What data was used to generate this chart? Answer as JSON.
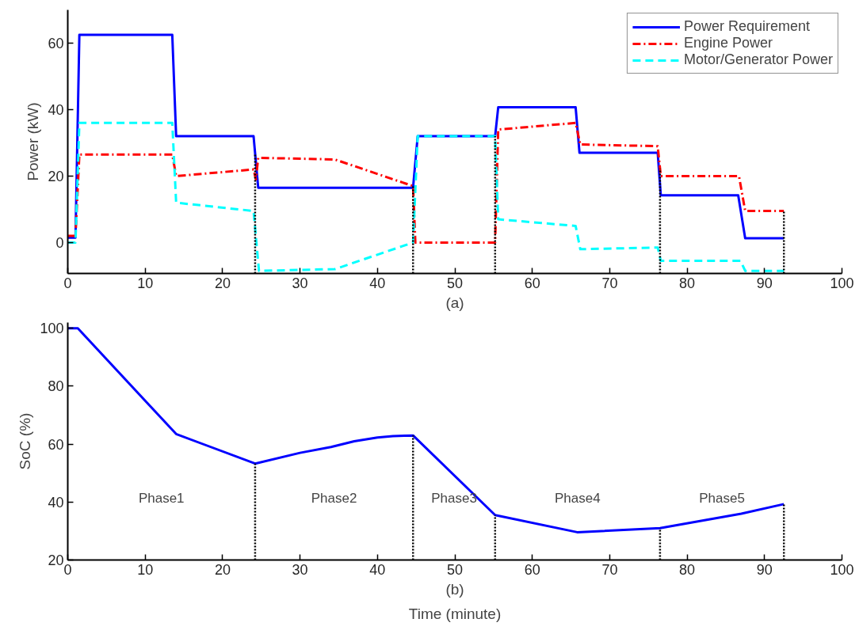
{
  "chart_data": [
    {
      "type": "line",
      "xlabel": "(a)",
      "ylabel": "Power (kW)",
      "xlim": [
        0,
        100
      ],
      "ylim": [
        -9.3,
        70
      ],
      "xticks": [
        0,
        10,
        20,
        30,
        40,
        50,
        60,
        70,
        80,
        90,
        100
      ],
      "yticks": [
        0,
        20,
        40,
        60
      ],
      "legend": "top right",
      "series": [
        {
          "name": "Power Requirement",
          "color": "#0000ff",
          "line_style": "solid",
          "x": [
            0,
            1,
            1.5,
            13.5,
            14,
            24,
            24.6,
            44.6,
            45.2,
            55.2,
            55.6,
            65.6,
            66.1,
            76.2,
            76.6,
            86.6,
            87.5,
            92.5
          ],
          "values": [
            1.5,
            1.5,
            62.5,
            62.5,
            32,
            32,
            16.5,
            16.5,
            32,
            32,
            40.7,
            40.7,
            27,
            27,
            14.2,
            14.2,
            1.3,
            1.3
          ]
        },
        {
          "name": "Engine Power",
          "color": "#ff0000",
          "line_style": "dashdot",
          "x": [
            0,
            1,
            1.5,
            13.5,
            14,
            24,
            24.3,
            24.6,
            34.5,
            44.6,
            44.9,
            55.2,
            55.6,
            65.6,
            66.2,
            76.2,
            76.6,
            86.7,
            87.5,
            92.5
          ],
          "values": [
            2,
            2,
            26.5,
            26.5,
            20,
            22,
            19,
            25.5,
            25,
            17,
            0,
            0,
            34,
            36,
            29.5,
            29,
            20,
            20,
            9.5,
            9.5
          ]
        },
        {
          "name": "Motor/Generator Power",
          "color": "#00ffff",
          "line_style": "dashed",
          "x": [
            0,
            1,
            1.5,
            13.5,
            14,
            24,
            24.7,
            34.5,
            44.6,
            45.2,
            55.2,
            55.6,
            65.6,
            66.2,
            76.2,
            76.6,
            86.9,
            87.5,
            92.5
          ],
          "values": [
            0,
            0,
            36,
            36,
            12,
            9.5,
            -8.5,
            -8,
            0,
            32,
            32,
            7,
            5,
            -2,
            -1.5,
            -5.5,
            -5.5,
            -8.5,
            -8.5
          ]
        }
      ],
      "ref_lines": [
        {
          "axis": "x",
          "value": 24.2,
          "color": "#000000",
          "line_style": "dotted"
        },
        {
          "axis": "x",
          "value": 44.6,
          "color": "#000000",
          "line_style": "dotted"
        },
        {
          "axis": "x",
          "value": 55.2,
          "color": "#000000",
          "line_style": "dotted"
        },
        {
          "axis": "x",
          "value": 76.5,
          "color": "#000000",
          "line_style": "dotted"
        },
        {
          "axis": "x",
          "value": 92.5,
          "color": "#000000",
          "line_style": "dotted"
        }
      ]
    },
    {
      "type": "line",
      "xlabel": "(b)",
      "ylabel": "SoC (%)",
      "xlim": [
        0,
        100
      ],
      "ylim": [
        20,
        102
      ],
      "xticks": [
        0,
        10,
        20,
        30,
        40,
        50,
        60,
        70,
        80,
        90,
        100
      ],
      "yticks": [
        20,
        40,
        60,
        80,
        100
      ],
      "series": [
        {
          "color": "#0000ff",
          "line_style": "solid",
          "x": [
            0,
            1.3,
            14,
            24.2,
            30,
            34,
            37,
            40,
            42,
            44.6,
            55.2,
            65.8,
            76.5,
            87,
            92.5
          ],
          "values": [
            100,
            100,
            63.5,
            53.3,
            57,
            59,
            61,
            62.3,
            62.8,
            63,
            35.5,
            29.6,
            31,
            36,
            39.3
          ]
        }
      ],
      "ref_lines": [
        {
          "axis": "x",
          "value": 24.2,
          "color": "#000000",
          "line_style": "dotted"
        },
        {
          "axis": "x",
          "value": 44.6,
          "color": "#000000",
          "line_style": "dotted"
        },
        {
          "axis": "x",
          "value": 55.2,
          "color": "#000000",
          "line_style": "dotted"
        },
        {
          "axis": "x",
          "value": 76.5,
          "color": "#000000",
          "line_style": "dotted"
        },
        {
          "axis": "x",
          "value": 92.5,
          "color": "#000000",
          "line_style": "dotted"
        }
      ],
      "annotations": [
        "Phase1",
        "Phase2",
        "Phase3",
        "Phase4",
        "Phase5",
        "Time (minute)"
      ]
    }
  ]
}
